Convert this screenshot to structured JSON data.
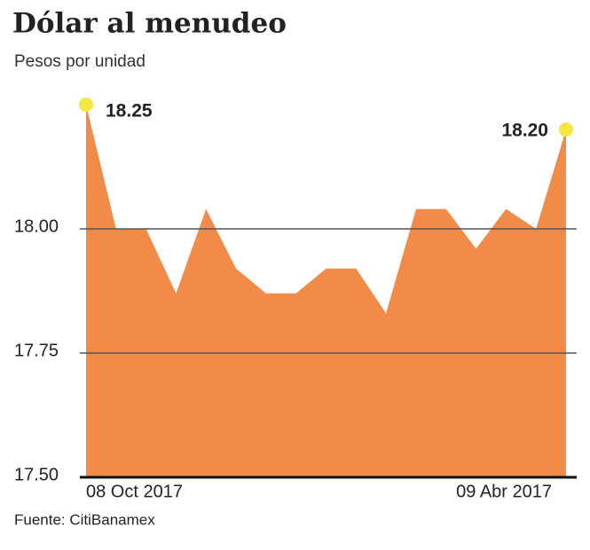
{
  "chart_data": {
    "type": "area",
    "title": "Dólar al menudeo",
    "subtitle": "Pesos por unidad",
    "source": "Fuente: CitiBanamex",
    "categories": [
      "08 Oct 2017",
      null,
      null,
      null,
      null,
      null,
      null,
      null,
      null,
      null,
      null,
      null,
      null,
      null,
      null,
      null,
      "09 Abr 2017"
    ],
    "values": [
      18.25,
      18.0,
      18.0,
      17.87,
      18.04,
      17.92,
      17.87,
      17.87,
      17.92,
      17.92,
      17.83,
      18.04,
      18.04,
      17.96,
      18.04,
      18.0,
      18.2
    ],
    "value_labels": [
      "18.25",
      null,
      null,
      null,
      null,
      null,
      null,
      null,
      null,
      null,
      null,
      null,
      null,
      null,
      null,
      null,
      "18.20"
    ],
    "color": "#f28a48",
    "marker_color": "#f5e642",
    "ylim": [
      17.5,
      18.3
    ],
    "yticks": [
      {
        "value": 17.5,
        "label": "17.50"
      },
      {
        "value": 17.75,
        "label": "17.75"
      },
      {
        "value": 18,
        "label": "18.00"
      }
    ],
    "grid": true
  }
}
